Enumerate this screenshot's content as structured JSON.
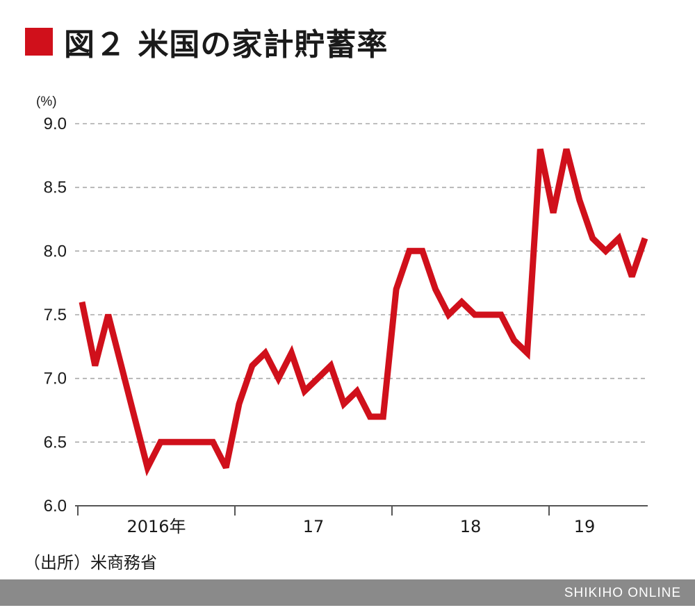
{
  "header": {
    "title": "図２ 米国の家計貯蓄率"
  },
  "chart_data": {
    "type": "line",
    "title": "図２ 米国の家計貯蓄率",
    "ylabel": "(%)",
    "xlabel": "",
    "ylim": [
      6.0,
      9.0
    ],
    "yticks": [
      "6.0",
      "6.5",
      "7.0",
      "7.5",
      "8.0",
      "8.5",
      "9.0"
    ],
    "ytick_values": [
      6.0,
      6.5,
      7.0,
      7.5,
      8.0,
      8.5,
      9.0
    ],
    "grid": true,
    "x_period_labels": [
      "2016年",
      "17",
      "18",
      "19"
    ],
    "series": [
      {
        "name": "家計貯蓄率",
        "color": "#d0101b",
        "values": [
          7.6,
          7.1,
          7.5,
          7.1,
          6.7,
          6.3,
          6.5,
          6.5,
          6.5,
          6.5,
          6.5,
          6.3,
          6.8,
          7.1,
          7.2,
          7.0,
          7.2,
          6.9,
          7.0,
          7.1,
          6.8,
          6.9,
          6.7,
          6.7,
          7.7,
          8.0,
          8.0,
          7.7,
          7.5,
          7.6,
          7.5,
          7.5,
          7.5,
          7.3,
          7.2,
          8.8,
          8.3,
          8.8,
          8.4,
          8.1,
          8.0,
          8.1,
          7.8,
          8.1
        ]
      }
    ]
  },
  "source": "（出所）米商務省",
  "footer": {
    "brand": "SHIKIHO ONLINE"
  }
}
